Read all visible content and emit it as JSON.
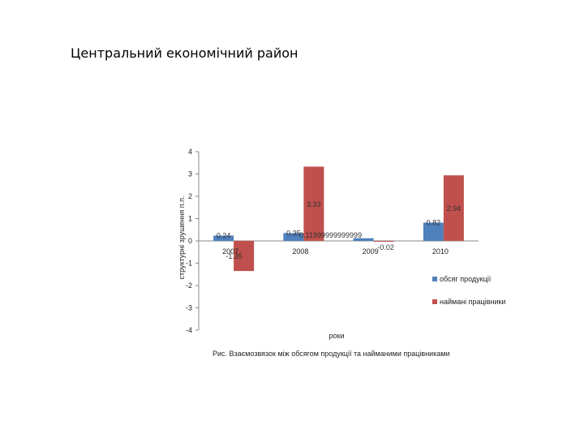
{
  "slide": {
    "title": "Центральний економічний район"
  },
  "chart_data": {
    "type": "bar",
    "categories": [
      "2007",
      "2008",
      "2009",
      "2010"
    ],
    "series": [
      {
        "name": "обсяг продукції",
        "values": [
          0.24,
          0.35,
          0.11999999999999,
          0.82
        ],
        "labels": [
          "0.24",
          "0.35",
          "0.11999999999999",
          "0.82"
        ],
        "color": "#4f81bd"
      },
      {
        "name": "наймані працівники",
        "values": [
          -1.35,
          3.33,
          -0.02,
          2.94
        ],
        "labels": [
          "-1.35",
          "3.33",
          "-0.02",
          "2.94"
        ],
        "color": "#c0504d"
      }
    ],
    "ylim": [
      -4,
      4
    ],
    "yticks": [
      "4",
      "3",
      "2",
      "1",
      "0",
      "-1",
      "-2",
      "-3",
      "-4"
    ],
    "ylabel": "структурні зрушення п.п.",
    "xlabel": "роки",
    "legend": "right",
    "caption": "Рис. Взаємозвязок між обсягом продукції та найманими працівниками"
  }
}
